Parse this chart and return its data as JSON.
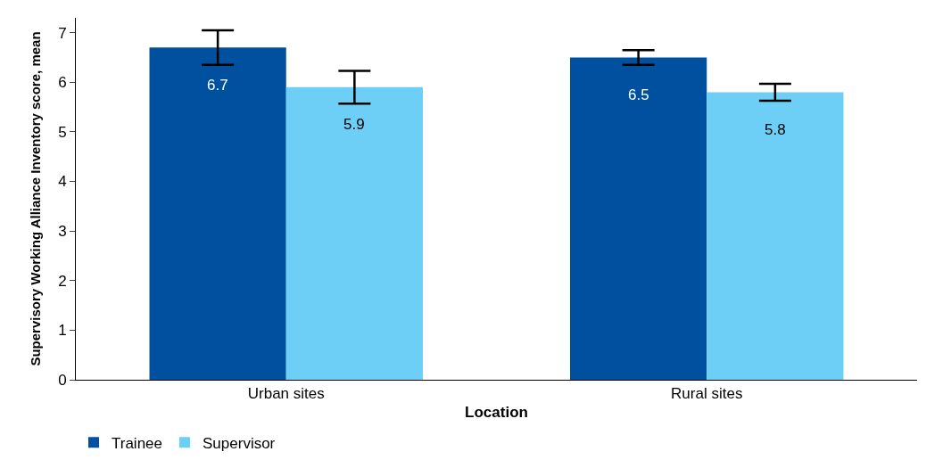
{
  "chart_data": {
    "type": "bar",
    "xlabel": "Location",
    "ylabel": "Supervisory Working Alliance Inventory score, mean",
    "categories": [
      "Urban sites",
      "Rural sites"
    ],
    "series": [
      {
        "name": "Trainee",
        "color": "#0050a0",
        "values": [
          6.7,
          6.5
        ],
        "errors": [
          0.35,
          0.15
        ]
      },
      {
        "name": "Supervisor",
        "color": "#6dcff6",
        "values": [
          5.9,
          5.8
        ],
        "errors": [
          0.33,
          0.17
        ]
      }
    ],
    "ylim": [
      0,
      7.3
    ],
    "yticks": [
      0,
      1,
      2,
      3,
      4,
      5,
      6,
      7
    ],
    "legend": "bottom left",
    "data_labels": true
  }
}
